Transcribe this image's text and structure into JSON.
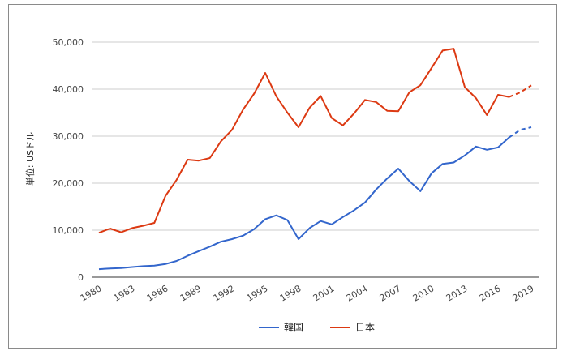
{
  "chart_data": {
    "type": "line",
    "ylabel": "単位: USドル",
    "ylim": [
      0,
      50000
    ],
    "yticks": [
      0,
      10000,
      20000,
      30000,
      40000,
      50000
    ],
    "ytick_labels": [
      "0",
      "10,000",
      "20,000",
      "30,000",
      "40,000",
      "50,000"
    ],
    "xlim": [
      1980,
      2019
    ],
    "xticks": [
      1980,
      1983,
      1986,
      1989,
      1992,
      1995,
      1998,
      2001,
      2004,
      2007,
      2010,
      2013,
      2016,
      2019
    ],
    "xtick_labels": [
      "1980",
      "1983",
      "1986",
      "1989",
      "1992",
      "1995",
      "1998",
      "2001",
      "2004",
      "2007",
      "2010",
      "2013",
      "2016",
      "2019"
    ],
    "grid": "horizontal",
    "legend_position": "bottom",
    "forecast_from_index": 37,
    "x": [
      1980,
      1981,
      1982,
      1983,
      1984,
      1985,
      1986,
      1987,
      1988,
      1989,
      1990,
      1991,
      1992,
      1993,
      1994,
      1995,
      1996,
      1997,
      1998,
      1999,
      2000,
      2001,
      2002,
      2003,
      2004,
      2005,
      2006,
      2007,
      2008,
      2009,
      2010,
      2011,
      2012,
      2013,
      2014,
      2015,
      2016,
      2017,
      2018,
      2019
    ],
    "series": [
      {
        "name": "韓国",
        "color": "#3366cc",
        "values": [
          1700,
          1850,
          1950,
          2150,
          2350,
          2450,
          2800,
          3450,
          4550,
          5550,
          6500,
          7550,
          8100,
          8850,
          10200,
          12350,
          13150,
          12150,
          8100,
          10450,
          11950,
          11250,
          12800,
          14200,
          15900,
          18650,
          21000,
          23100,
          20450,
          18300,
          22100,
          24100,
          24400,
          25900,
          27800,
          27100,
          27600,
          29750,
          31350,
          31900
        ]
      },
      {
        "name": "日本",
        "color": "#dc3912",
        "values": [
          9450,
          10350,
          9550,
          10450,
          10950,
          11550,
          17300,
          20700,
          25000,
          24800,
          25350,
          28900,
          31350,
          35650,
          39050,
          43450,
          38450,
          35000,
          31900,
          36050,
          38550,
          33850,
          32300,
          34800,
          37700,
          37250,
          35400,
          35300,
          39350,
          40850,
          44500,
          48200,
          48600,
          40450,
          38100,
          34500,
          38800,
          38350,
          39300,
          40800
        ]
      }
    ]
  }
}
